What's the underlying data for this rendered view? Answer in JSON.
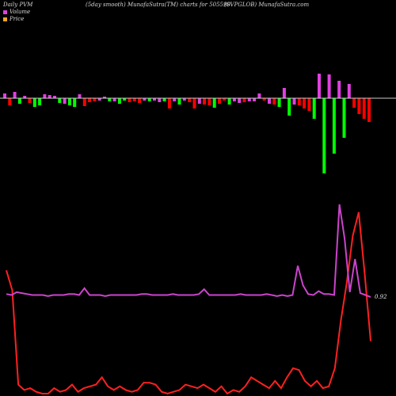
{
  "header": {
    "left": "Daily PVM",
    "center": "(5day smooth) MunafaSutra(TM) charts for 505590",
    "right": "(SVPGLOB) MunafaSutra.com"
  },
  "legend": [
    {
      "label": "Volume",
      "color": "#e040e0"
    },
    {
      "label": "Price",
      "color": "#f5a623"
    }
  ],
  "price_label": "0.92",
  "colors": {
    "up": "#00ff00",
    "down": "#ff0000",
    "neutral": "#e040e0",
    "price_line": "#ff2020",
    "volume_line": "#cc44cc",
    "baseline": "#cccccc"
  },
  "chart_data": {
    "type": "bar",
    "grid": false,
    "volume_bars": [
      {
        "v": 6,
        "c": "n"
      },
      {
        "v": -9,
        "c": "d"
      },
      {
        "v": 8,
        "c": "n"
      },
      {
        "v": -7,
        "c": "u"
      },
      {
        "v": 3,
        "c": "n"
      },
      {
        "v": -6,
        "c": "d"
      },
      {
        "v": -11,
        "c": "u"
      },
      {
        "v": -9,
        "c": "u"
      },
      {
        "v": 5,
        "c": "n"
      },
      {
        "v": 4,
        "c": "n"
      },
      {
        "v": 3,
        "c": "n"
      },
      {
        "v": -6,
        "c": "u"
      },
      {
        "v": -7,
        "c": "n"
      },
      {
        "v": -9,
        "c": "u"
      },
      {
        "v": -11,
        "c": "u"
      },
      {
        "v": 5,
        "c": "n"
      },
      {
        "v": -10,
        "c": "d"
      },
      {
        "v": -5,
        "c": "d"
      },
      {
        "v": -4,
        "c": "d"
      },
      {
        "v": -3,
        "c": "n"
      },
      {
        "v": 2,
        "c": "n"
      },
      {
        "v": -4,
        "c": "u"
      },
      {
        "v": -4,
        "c": "n"
      },
      {
        "v": -7,
        "c": "u"
      },
      {
        "v": -3,
        "c": "u"
      },
      {
        "v": -5,
        "c": "d"
      },
      {
        "v": -4,
        "c": "d"
      },
      {
        "v": -6,
        "c": "d"
      },
      {
        "v": -3,
        "c": "n"
      },
      {
        "v": -4,
        "c": "u"
      },
      {
        "v": -3,
        "c": "n"
      },
      {
        "v": -5,
        "c": "n"
      },
      {
        "v": -4,
        "c": "u"
      },
      {
        "v": -13,
        "c": "d"
      },
      {
        "v": -4,
        "c": "n"
      },
      {
        "v": -8,
        "c": "u"
      },
      {
        "v": -3,
        "c": "n"
      },
      {
        "v": -5,
        "c": "d"
      },
      {
        "v": -13,
        "c": "d"
      },
      {
        "v": -7,
        "c": "n"
      },
      {
        "v": -8,
        "c": "d"
      },
      {
        "v": -9,
        "c": "d"
      },
      {
        "v": -12,
        "c": "u"
      },
      {
        "v": -7,
        "c": "d"
      },
      {
        "v": -3,
        "c": "d"
      },
      {
        "v": -8,
        "c": "u"
      },
      {
        "v": -4,
        "c": "n"
      },
      {
        "v": -6,
        "c": "n"
      },
      {
        "v": -5,
        "c": "d"
      },
      {
        "v": -4,
        "c": "n"
      },
      {
        "v": -4,
        "c": "n"
      },
      {
        "v": 6,
        "c": "n"
      },
      {
        "v": -3,
        "c": "d"
      },
      {
        "v": -7,
        "c": "n"
      },
      {
        "v": -8,
        "c": "d"
      },
      {
        "v": -11,
        "c": "u"
      },
      {
        "v": 13,
        "c": "n"
      },
      {
        "v": -22,
        "c": "u"
      },
      {
        "v": -8,
        "c": "n"
      },
      {
        "v": -9,
        "c": "d"
      },
      {
        "v": -13,
        "c": "d"
      },
      {
        "v": -16,
        "c": "d"
      },
      {
        "v": -26,
        "c": "u"
      },
      {
        "v": 31,
        "c": "n"
      },
      {
        "v": -95,
        "c": "u"
      },
      {
        "v": 30,
        "c": "n"
      },
      {
        "v": -70,
        "c": "u"
      },
      {
        "v": 22,
        "c": "n"
      },
      {
        "v": -50,
        "c": "u"
      },
      {
        "v": 18,
        "c": "n"
      },
      {
        "v": -12,
        "c": "d"
      },
      {
        "v": -20,
        "c": "d"
      },
      {
        "v": -26,
        "c": "d"
      },
      {
        "v": -30,
        "c": "d"
      }
    ],
    "volume_line": [
      3,
      2,
      5,
      4,
      3,
      2,
      2,
      2,
      1,
      2,
      2,
      2,
      3,
      3,
      2,
      9,
      2,
      2,
      2,
      1,
      2,
      2,
      2,
      2,
      2,
      2,
      3,
      3,
      2,
      2,
      2,
      2,
      3,
      2,
      2,
      2,
      2,
      3,
      8,
      2,
      2,
      2,
      2,
      2,
      2,
      3,
      2,
      2,
      2,
      2,
      3,
      2,
      1,
      2,
      1,
      2,
      32,
      12,
      3,
      2,
      6,
      3,
      3,
      2,
      95,
      60,
      5,
      39,
      4,
      2,
      0
    ],
    "price_line": [
      68,
      57,
      5,
      2,
      3,
      1,
      0,
      0,
      3,
      1,
      2,
      5,
      1,
      3,
      4,
      5,
      9,
      4,
      2,
      4,
      2,
      1,
      2,
      6,
      6,
      5,
      1,
      0,
      1,
      2,
      5,
      4,
      3,
      5,
      3,
      1,
      4,
      0,
      2,
      1,
      4,
      9,
      7,
      5,
      3,
      7,
      3,
      9,
      14,
      13,
      7,
      4,
      7,
      3,
      4,
      14,
      40,
      61,
      87,
      100,
      66,
      29
    ],
    "series": [
      {
        "name": "Volume",
        "color": "#e040e0"
      },
      {
        "name": "Price",
        "color": "#f5a623"
      }
    ]
  }
}
